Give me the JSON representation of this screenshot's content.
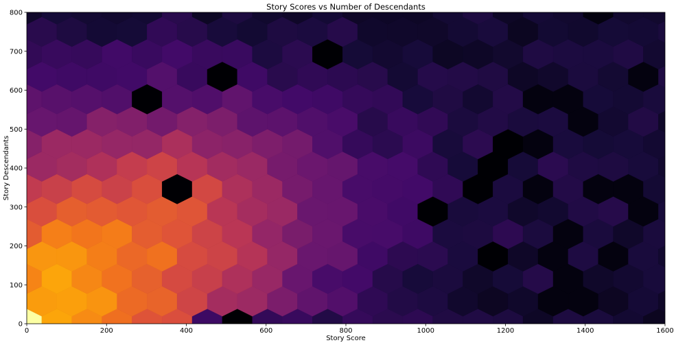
{
  "chart_data": {
    "type": "heatmap",
    "subtype": "hexbin",
    "title": "Story Scores vs Number of Descendants",
    "xlabel": "Story Score",
    "ylabel": "Story Descendants",
    "xlim": [
      0,
      1600
    ],
    "ylim": [
      0,
      800
    ],
    "xticks": [
      0,
      200,
      400,
      600,
      800,
      1000,
      1200,
      1400,
      1600
    ],
    "yticks": [
      0,
      100,
      200,
      300,
      400,
      500,
      600,
      700,
      800
    ],
    "colormap": "inferno",
    "background_color": "#000004",
    "grid": false,
    "legend": "none",
    "hex_size": {
      "dx": 37.7,
      "dy": 57.7
    },
    "density_peak": {
      "x": 0,
      "y": 0
    }
  }
}
